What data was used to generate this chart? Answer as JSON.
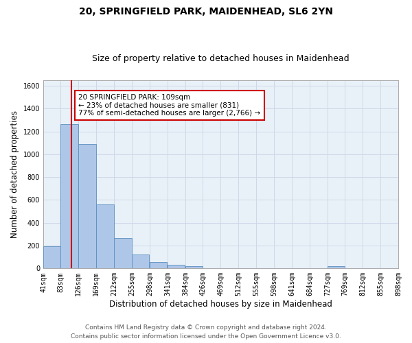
{
  "title1": "20, SPRINGFIELD PARK, MAIDENHEAD, SL6 2YN",
  "title2": "Size of property relative to detached houses in Maidenhead",
  "xlabel": "Distribution of detached houses by size in Maidenhead",
  "ylabel": "Number of detached properties",
  "footer1": "Contains HM Land Registry data © Crown copyright and database right 2024.",
  "footer2": "Contains public sector information licensed under the Open Government Licence v3.0.",
  "bin_edges": [
    41,
    83,
    126,
    169,
    212,
    255,
    298,
    341,
    384,
    426,
    469,
    512,
    555,
    598,
    641,
    684,
    727,
    769,
    812,
    855,
    898
  ],
  "bin_labels": [
    "41sqm",
    "83sqm",
    "126sqm",
    "169sqm",
    "212sqm",
    "255sqm",
    "298sqm",
    "341sqm",
    "384sqm",
    "426sqm",
    "469sqm",
    "512sqm",
    "555sqm",
    "598sqm",
    "641sqm",
    "684sqm",
    "727sqm",
    "769sqm",
    "812sqm",
    "855sqm",
    "898sqm"
  ],
  "bar_heights": [
    195,
    1265,
    1090,
    560,
    265,
    120,
    55,
    30,
    20,
    5,
    5,
    5,
    5,
    0,
    0,
    0,
    20,
    0,
    0,
    5
  ],
  "bar_color": "#aec6e8",
  "bar_edge_color": "#5a8fc0",
  "property_size": 109,
  "red_line_color": "#cc0000",
  "annotation_line1": "20 SPRINGFIELD PARK: 109sqm",
  "annotation_line2": "← 23% of detached houses are smaller (831)",
  "annotation_line3": "77% of semi-detached houses are larger (2,766) →",
  "annotation_box_color": "#ffffff",
  "annotation_box_edge_color": "#cc0000",
  "ylim": [
    0,
    1650
  ],
  "yticks": [
    0,
    200,
    400,
    600,
    800,
    1000,
    1200,
    1400,
    1600
  ],
  "bg_color": "#ffffff",
  "grid_color": "#d0d8e8",
  "title_fontsize": 10,
  "subtitle_fontsize": 9,
  "axis_label_fontsize": 8.5,
  "tick_fontsize": 7,
  "annotation_fontsize": 7.5,
  "footer_fontsize": 6.5
}
